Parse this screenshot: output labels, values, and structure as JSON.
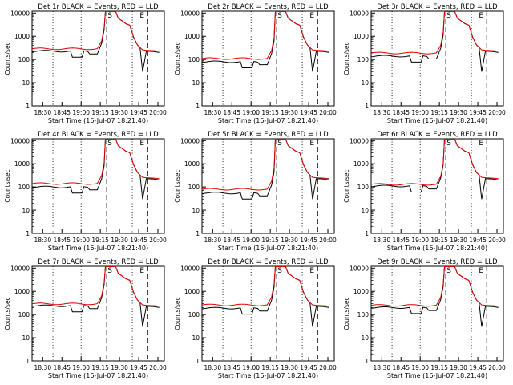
{
  "chart_data": [
    {
      "type": "line",
      "title": "Det 1r BLACK = Events, RED = LLD",
      "xlabel": "Start Time (16-Jul-07 18:21:40)",
      "ylabel": "Counts/sec",
      "x_ticks": [
        "18:30",
        "18:45",
        "19:00",
        "19:15",
        "19:30",
        "19:45",
        "20:00"
      ],
      "y_ticks": [
        "1",
        "10",
        "100",
        "1000",
        "10000"
      ],
      "ylim": [
        1,
        12000
      ],
      "markers": [
        "S",
        "E"
      ],
      "series": [
        {
          "name": "Events",
          "color": "#000000",
          "baseline": 230,
          "dip": true
        },
        {
          "name": "LLD",
          "color": "#e00000",
          "baseline": 290
        }
      ]
    },
    {
      "type": "line",
      "title": "Det 2r BLACK = Events, RED = LLD",
      "xlabel": "Start Time (16-Jul-07 18:21:40)",
      "ylabel": "Counts/sec",
      "x_ticks": [
        "18:30",
        "18:45",
        "19:00",
        "19:15",
        "19:30",
        "19:45",
        "20:00"
      ],
      "y_ticks": [
        "1",
        "10",
        "100",
        "1000",
        "10000"
      ],
      "ylim": [
        1,
        12000
      ],
      "markers": [
        "S",
        "E"
      ],
      "series": [
        {
          "name": "Events",
          "color": "#000000",
          "baseline": 80,
          "dip": true
        },
        {
          "name": "LLD",
          "color": "#e00000",
          "baseline": 110
        }
      ]
    },
    {
      "type": "line",
      "title": "Det 3r BLACK = Events, RED = LLD",
      "xlabel": "Start Time (16-Jul-07 18:21:40)",
      "ylabel": "Counts/sec",
      "x_ticks": [
        "18:30",
        "18:45",
        "19:00",
        "19:15",
        "19:30",
        "19:45",
        "20:00"
      ],
      "y_ticks": [
        "1",
        "10",
        "100",
        "1000",
        "10000"
      ],
      "ylim": [
        1,
        12000
      ],
      "markers": [
        "S",
        "E"
      ],
      "series": [
        {
          "name": "Events",
          "color": "#000000",
          "baseline": 140,
          "dip": true
        },
        {
          "name": "LLD",
          "color": "#e00000",
          "baseline": 190
        }
      ]
    },
    {
      "type": "line",
      "title": "Det 4r BLACK = Events, RED = LLD",
      "xlabel": "Start Time (16-Jul-07 18:21:40)",
      "ylabel": "Counts/sec",
      "x_ticks": [
        "18:30",
        "18:45",
        "19:00",
        "19:15",
        "19:30",
        "19:45",
        "20:00"
      ],
      "y_ticks": [
        "1",
        "10",
        "100",
        "1000",
        "10000"
      ],
      "ylim": [
        1,
        12000
      ],
      "markers": [
        "S",
        "E"
      ],
      "series": [
        {
          "name": "Events",
          "color": "#000000",
          "baseline": 100,
          "dip": true
        },
        {
          "name": "LLD",
          "color": "#e00000",
          "baseline": 140
        }
      ]
    },
    {
      "type": "line",
      "title": "Det 5r BLACK = Events, RED = LLD",
      "xlabel": "Start Time (16-Jul-07 18:21:40)",
      "ylabel": "Counts/sec",
      "x_ticks": [
        "18:30",
        "18:45",
        "19:00",
        "19:15",
        "19:30",
        "19:45",
        "20:00"
      ],
      "y_ticks": [
        "1",
        "10",
        "100",
        "1000",
        "10000"
      ],
      "ylim": [
        1,
        12000
      ],
      "markers": [
        "S",
        "E"
      ],
      "series": [
        {
          "name": "Events",
          "color": "#000000",
          "baseline": 55,
          "dip": true
        },
        {
          "name": "LLD",
          "color": "#e00000",
          "baseline": 80
        }
      ]
    },
    {
      "type": "line",
      "title": "Det 6r BLACK = Events, RED = LLD",
      "xlabel": "Start Time (16-Jul-07 18:21:40)",
      "ylabel": "Counts/sec",
      "x_ticks": [
        "18:30",
        "18:45",
        "19:00",
        "19:15",
        "19:30",
        "19:45",
        "20:00"
      ],
      "y_ticks": [
        "1",
        "10",
        "100",
        "1000",
        "10000"
      ],
      "ylim": [
        1,
        12000
      ],
      "markers": [
        "S",
        "E"
      ],
      "series": [
        {
          "name": "Events",
          "color": "#000000",
          "baseline": 110,
          "dip": true
        },
        {
          "name": "LLD",
          "color": "#e00000",
          "baseline": 130
        }
      ]
    },
    {
      "type": "line",
      "title": "Det 7r BLACK = Events, RED = LLD",
      "xlabel": "Start Time (16-Jul-07 18:21:40)",
      "ylabel": "Counts/sec",
      "x_ticks": [
        "18:30",
        "18:45",
        "19:00",
        "19:15",
        "19:30",
        "19:45",
        "20:00"
      ],
      "y_ticks": [
        "1",
        "10",
        "100",
        "1000",
        "10000"
      ],
      "ylim": [
        1,
        12000
      ],
      "markers": [
        "S",
        "E"
      ],
      "series": [
        {
          "name": "Events",
          "color": "#000000",
          "baseline": 240,
          "dip": true
        },
        {
          "name": "LLD",
          "color": "#e00000",
          "baseline": 290
        }
      ]
    },
    {
      "type": "line",
      "title": "Det 8r BLACK = Events, RED = LLD",
      "xlabel": "Start Time (16-Jul-07 18:21:40)",
      "ylabel": "Counts/sec",
      "x_ticks": [
        "18:30",
        "18:45",
        "19:00",
        "19:15",
        "19:30",
        "19:45",
        "20:00"
      ],
      "y_ticks": [
        "1",
        "10",
        "100",
        "1000",
        "10000"
      ],
      "ylim": [
        1,
        12000
      ],
      "markers": [
        "S",
        "E"
      ],
      "series": [
        {
          "name": "Events",
          "color": "#000000",
          "baseline": 190,
          "dip": true
        },
        {
          "name": "LLD",
          "color": "#e00000",
          "baseline": 260
        }
      ]
    },
    {
      "type": "line",
      "title": "Det 9r BLACK = Events, RED = LLD",
      "xlabel": "Start Time (16-Jul-07 18:21:40)",
      "ylabel": "Counts/sec",
      "x_ticks": [
        "18:30",
        "18:45",
        "19:00",
        "19:15",
        "19:30",
        "19:45",
        "20:00"
      ],
      "y_ticks": [
        "1",
        "10",
        "100",
        "1000",
        "10000"
      ],
      "ylim": [
        1,
        12000
      ],
      "markers": [
        "S",
        "E"
      ],
      "series": [
        {
          "name": "Events",
          "color": "#000000",
          "baseline": 200,
          "dip": true
        },
        {
          "name": "LLD",
          "color": "#e00000",
          "baseline": 250
        }
      ]
    }
  ]
}
